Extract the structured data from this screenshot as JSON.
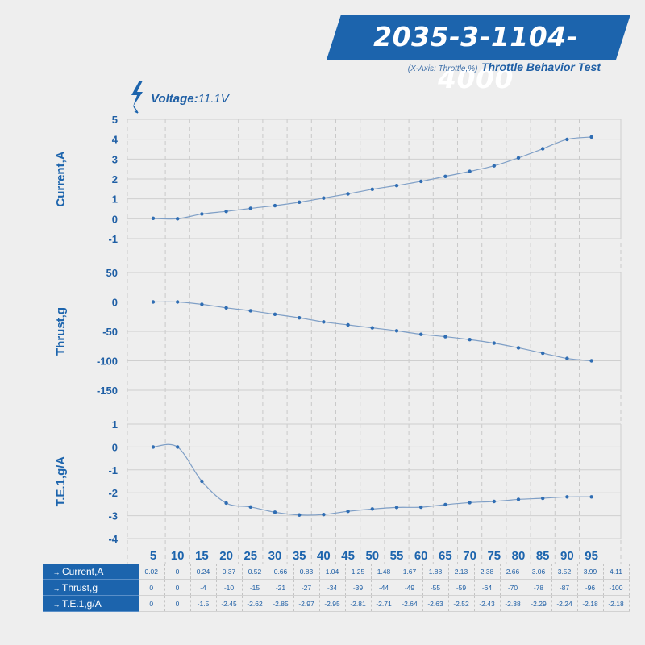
{
  "header": {
    "title": "2035-3-1104-4000",
    "axis_note": "(X-Axis: Throttle,%)",
    "test_name": "Throttle Behavior Test",
    "voltage_label": "Voltage:",
    "voltage_value": "11.1V"
  },
  "colors": {
    "accent": "#1c64ad",
    "text": "#1f5fa5",
    "line": "#7f9fc6",
    "marker": "#2f6db3",
    "grid": "#c9c9c9",
    "background": "#eeeeee"
  },
  "chart_data": {
    "type": "line",
    "x": [
      5,
      10,
      15,
      20,
      25,
      30,
      35,
      40,
      45,
      50,
      55,
      60,
      65,
      70,
      75,
      80,
      85,
      90,
      95
    ],
    "x_tick_labels": [
      "5",
      "10",
      "15",
      "20",
      "25",
      "30",
      "35",
      "40",
      "45",
      "50",
      "55",
      "60",
      "65",
      "70",
      "75",
      "80",
      "85",
      "90",
      "95"
    ],
    "grid": true,
    "series": [
      {
        "name": "Current,A",
        "ylim": [
          -1,
          5
        ],
        "yticks": [
          "5",
          "4",
          "3",
          "2",
          "1",
          "0",
          "-1"
        ],
        "values": [
          0.02,
          0,
          0.24,
          0.37,
          0.52,
          0.66,
          0.83,
          1.04,
          1.25,
          1.48,
          1.67,
          1.88,
          2.13,
          2.38,
          2.66,
          3.06,
          3.52,
          3.99,
          4.11
        ]
      },
      {
        "name": "Thrust,g",
        "ylim": [
          -150,
          50
        ],
        "yticks": [
          "50",
          "0",
          "-50",
          "-100",
          "-150"
        ],
        "values": [
          0,
          0,
          -4,
          -10,
          -15,
          -21,
          -27,
          -34,
          -39,
          -44,
          -49,
          -55,
          -59,
          -64,
          -70,
          -78,
          -87,
          -96,
          -100
        ]
      },
      {
        "name": "T.E.1,g/A",
        "ylim": [
          -4,
          1
        ],
        "yticks": [
          "1",
          "0",
          "-1",
          "-2",
          "-3",
          "-4"
        ],
        "values": [
          0,
          0,
          -1.5,
          -2.45,
          -2.62,
          -2.85,
          -2.97,
          -2.95,
          -2.81,
          -2.71,
          -2.64,
          -2.63,
          -2.52,
          -2.43,
          -2.38,
          -2.29,
          -2.24,
          -2.18,
          -2.18
        ]
      }
    ],
    "table": [
      {
        "label": "Current,A",
        "marker": "→",
        "cells": [
          "0.02",
          "0",
          "0.24",
          "0.37",
          "0.52",
          "0.66",
          "0.83",
          "1.04",
          "1.25",
          "1.48",
          "1.67",
          "1.88",
          "2.13",
          "2.38",
          "2.66",
          "3.06",
          "3.52",
          "3.99",
          "4.11"
        ]
      },
      {
        "label": "Thrust,g",
        "marker": "→",
        "cells": [
          "0",
          "0",
          "-4",
          "-10",
          "-15",
          "-21",
          "-27",
          "-34",
          "-39",
          "-44",
          "-49",
          "-55",
          "-59",
          "-64",
          "-70",
          "-78",
          "-87",
          "-96",
          "-100"
        ]
      },
      {
        "label": "T.E.1,g/A",
        "marker": "→",
        "cells": [
          "0",
          "0",
          "-1.5",
          "-2.45",
          "-2.62",
          "-2.85",
          "-2.97",
          "-2.95",
          "-2.81",
          "-2.71",
          "-2.64",
          "-2.63",
          "-2.52",
          "-2.43",
          "-2.38",
          "-2.29",
          "-2.24",
          "-2.18",
          "-2.18"
        ]
      }
    ]
  }
}
